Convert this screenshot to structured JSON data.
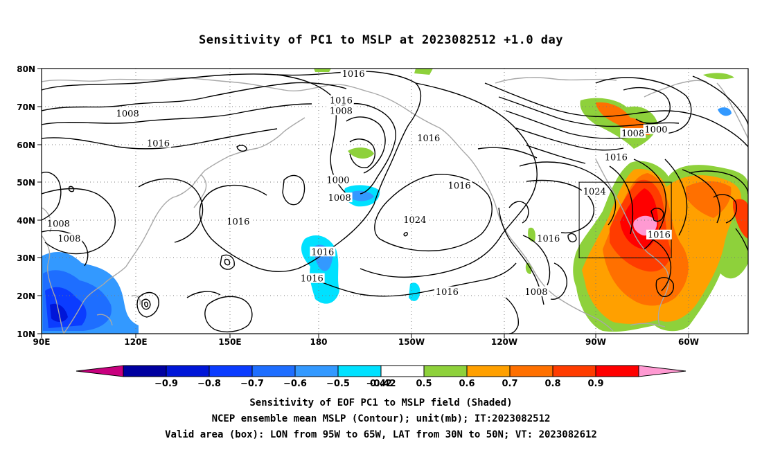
{
  "title": "Sensitivity of PC1 to MSLP at 2023082512 +1.0 day",
  "map": {
    "lat_labels": [
      "80N",
      "70N",
      "60N",
      "50N",
      "40N",
      "30N",
      "20N",
      "10N"
    ],
    "lon_labels": [
      "90E",
      "120E",
      "150E",
      "180",
      "150W",
      "120W",
      "90W",
      "60W"
    ],
    "contour_labels": [
      {
        "text": "1016",
        "lon": 191.5,
        "lat": 78.5
      },
      {
        "text": "1016",
        "lon": 187.5,
        "lat": 71.5
      },
      {
        "text": "1008",
        "lon": 187.5,
        "lat": 68.8
      },
      {
        "text": "1008",
        "lon": 118.0,
        "lat": 68.0
      },
      {
        "text": "1016",
        "lon": 128.0,
        "lat": 60.2
      },
      {
        "text": "1016",
        "lon": 216.0,
        "lat": 61.5
      },
      {
        "text": "1000",
        "lon": 186.5,
        "lat": 50.5
      },
      {
        "text": "1008",
        "lon": 187.0,
        "lat": 45.8
      },
      {
        "text": "1016",
        "lon": 226.0,
        "lat": 49.0
      },
      {
        "text": "1016",
        "lon": 154.0,
        "lat": 39.5
      },
      {
        "text": "1024",
        "lon": 211.5,
        "lat": 40.0
      },
      {
        "text": "1008",
        "lon": 95.5,
        "lat": 39.0
      },
      {
        "text": "1008",
        "lon": 99.0,
        "lat": 35.0
      },
      {
        "text": "1016",
        "lon": 181.5,
        "lat": 31.5
      },
      {
        "text": "1016",
        "lon": 178.0,
        "lat": 24.5
      },
      {
        "text": "1016",
        "lon": 222.0,
        "lat": 21.0
      },
      {
        "text": "1008",
        "lon": 251.0,
        "lat": 21.0
      },
      {
        "text": "1016",
        "lon": 255.0,
        "lat": 35.0
      },
      {
        "text": "1024",
        "lon": 270.0,
        "lat": 47.5
      },
      {
        "text": "1016",
        "lon": 291.0,
        "lat": 36.0
      },
      {
        "text": "1016",
        "lon": 277.0,
        "lat": 56.5
      },
      {
        "text": "1008",
        "lon": 282.5,
        "lat": 62.8
      },
      {
        "text": "1000",
        "lon": 290.0,
        "lat": 63.8
      }
    ],
    "valid_box": {
      "lon_min": 265,
      "lon_max": 295,
      "lat_min": 30,
      "lat_max": 50
    }
  },
  "colorbar": {
    "labels": [
      "-0.9",
      "-0.8",
      "-0.7",
      "-0.6",
      "-0.5",
      "-0.42",
      "0.42",
      "0.5",
      "0.6",
      "0.7",
      "0.8",
      "0.9"
    ],
    "colors": [
      "#0000a0",
      "#0016d8",
      "#0b3cff",
      "#1e6eff",
      "#3399ff",
      "#00e1ff",
      "#ffffff",
      "#8ed13b",
      "#ffa000",
      "#ff7000",
      "#ff3c00",
      "#ff0000"
    ],
    "low_end_color": "#c8007e",
    "high_end_color": "#ff9ad2"
  },
  "captions": {
    "line1": "Sensitivity of EOF PC1 to MSLP field (Shaded)",
    "line2": "NCEP ensemble mean MSLP (Contour); unit(mb); IT:2023082512",
    "line3": "Valid area (box): LON from 95W to 65W, LAT from 30N to 50N; VT: 2023082612"
  }
}
